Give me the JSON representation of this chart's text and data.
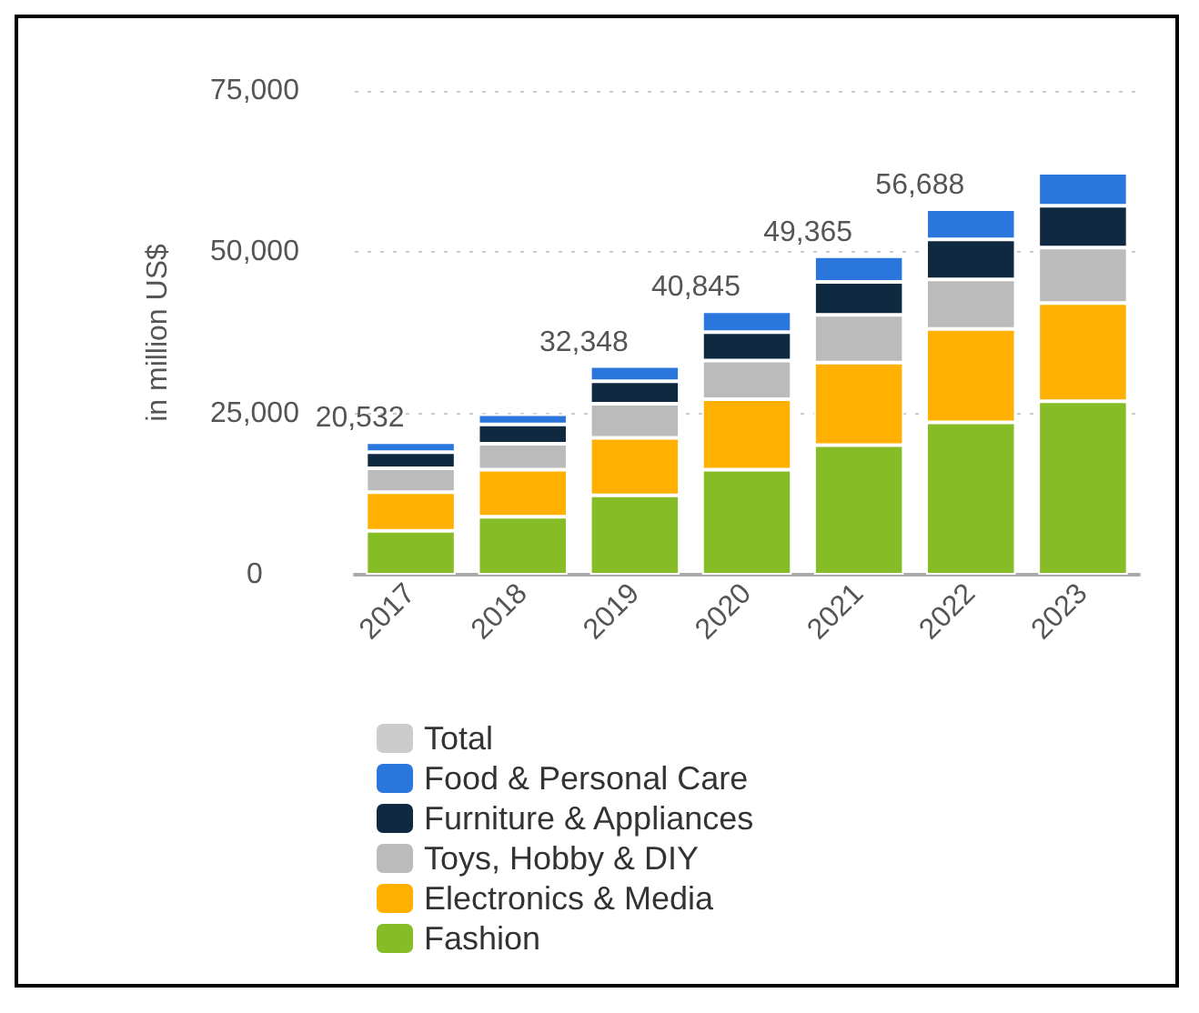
{
  "chart_data": {
    "type": "bar",
    "ylabel": "in million US$",
    "stacked": true,
    "categories": [
      "2017",
      "2018",
      "2019",
      "2020",
      "2021",
      "2022",
      "2023"
    ],
    "series": [
      {
        "name": "Fashion",
        "color": "#86bc25",
        "values": [
          6800.0,
          9000.0,
          12300.0,
          16300.0,
          20100.0,
          23600.0,
          26900.0
        ]
      },
      {
        "name": "Electronics & Media",
        "color": "#ffb000",
        "values": [
          6000.0,
          7300.0,
          8900.0,
          10900.0,
          12800.0,
          14500.0,
          15200.0
        ]
      },
      {
        "name": "Toys, Hobby & DIY",
        "color": "#bbbbbb",
        "values": [
          3700.0,
          4000.0,
          5300.0,
          6000.0,
          7400.0,
          7700.0,
          8600.0
        ]
      },
      {
        "name": "Furniture & Appliances",
        "color": "#0f2a40",
        "values": [
          2500.0,
          3000.0,
          3500.0,
          4400.0,
          5100.0,
          6200.0,
          6500.0
        ]
      },
      {
        "name": "Food & Personal Care",
        "color": "#2a76dd",
        "values": [
          1532,
          1600.0,
          2348,
          3245,
          3965,
          4688,
          5100.0
        ]
      },
      {
        "name": "Total",
        "color": "#cccccc",
        "values": [
          null,
          null,
          null,
          null,
          null,
          null,
          null
        ]
      }
    ],
    "totals": [
      "20,532",
      null,
      "32,348",
      "40,845",
      "49,365",
      "56,688",
      null
    ],
    "ylim": [
      0,
      75000
    ],
    "yticks": [
      {
        "value": 0,
        "label": "0"
      },
      {
        "value": 25000,
        "label": "25,000"
      },
      {
        "value": 50000,
        "label": "50,000"
      },
      {
        "value": 75000,
        "label": "75,000"
      }
    ],
    "grid": "y",
    "legend": "bottom left"
  }
}
